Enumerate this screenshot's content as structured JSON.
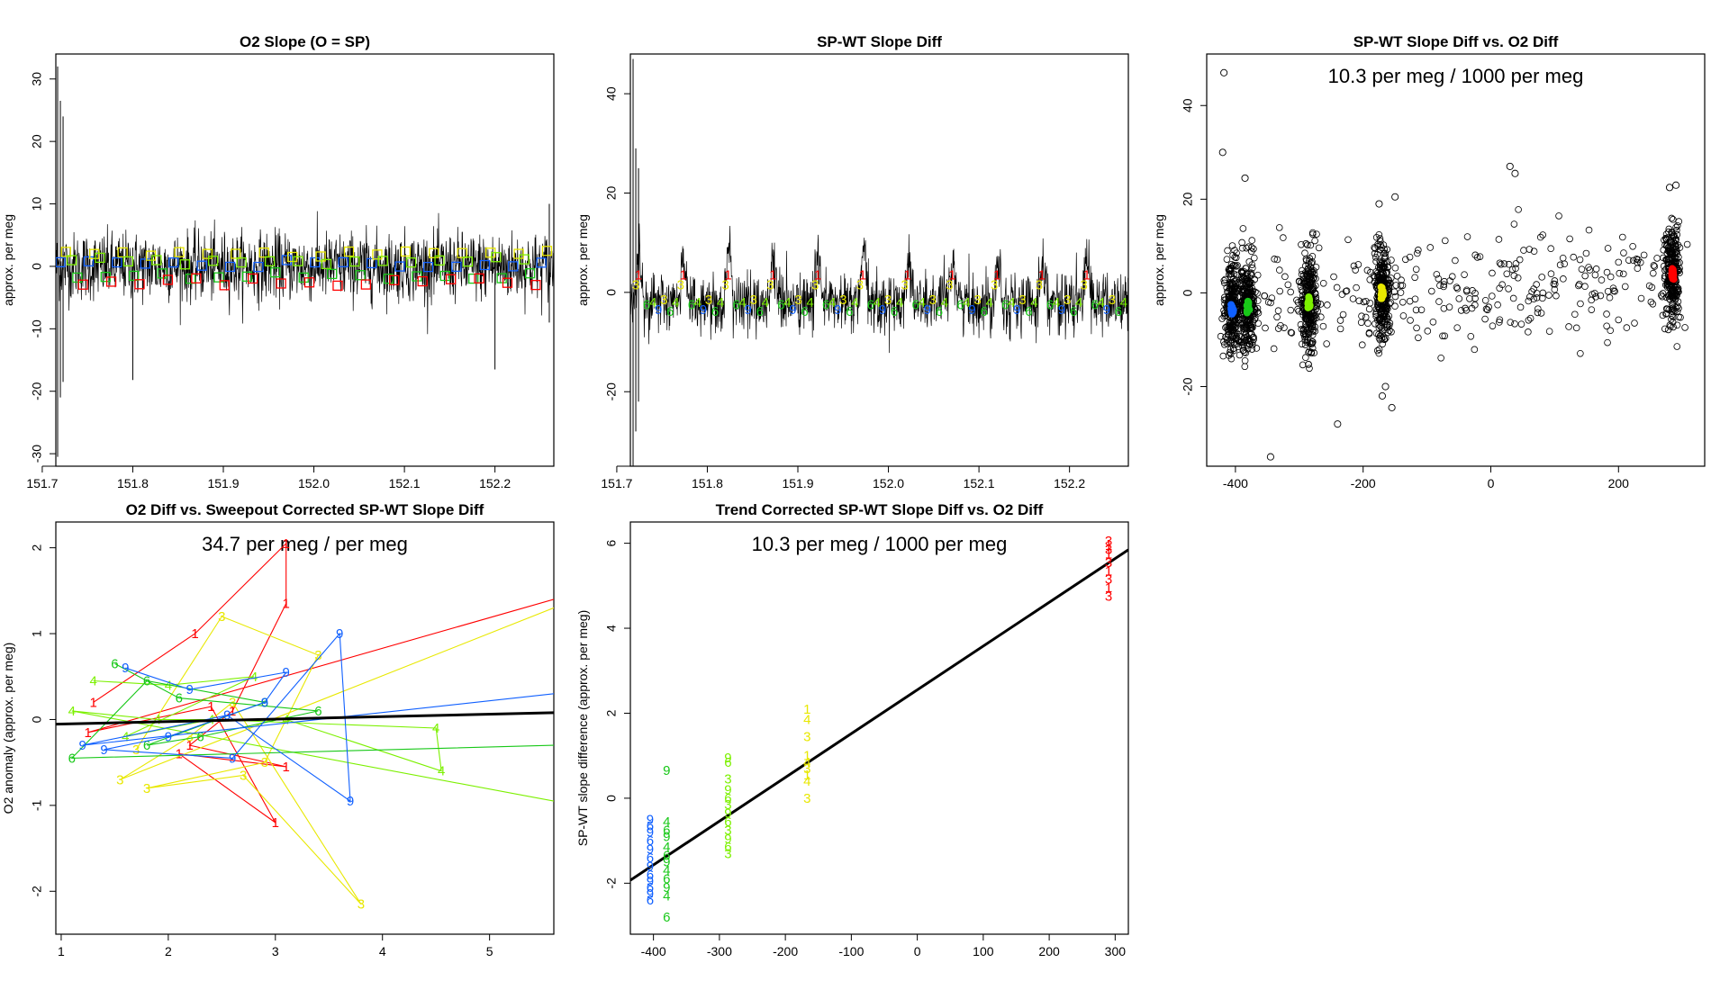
{
  "colors": {
    "t1": "#ff0000",
    "t3": "#e8e800",
    "t4": "#7cf000",
    "t6": "#18c818",
    "t9": "#1060ff",
    "black": "#000000"
  },
  "chart_data": [
    {
      "id": "p1",
      "type": "line",
      "title": "O2 Slope (O = SP)",
      "xlabel": "",
      "ylabel": "approx. per meg",
      "xlim": [
        151.715,
        152.265
      ],
      "ylim": [
        -32,
        34
      ],
      "xticks": [
        "151.7",
        "151.8",
        "151.9",
        "152.0",
        "152.1",
        "152.2"
      ],
      "yticks": [
        "-30",
        "-20",
        "-10",
        "0",
        "10",
        "20",
        "30"
      ],
      "xtick_values": [
        151.7,
        151.8,
        151.9,
        152.0,
        152.1,
        152.2
      ],
      "ytick_values": [
        -30,
        -20,
        -10,
        0,
        10,
        20,
        30
      ],
      "noise": {
        "center": 0,
        "sd": 2.7,
        "spikes": [
          [
            151.717,
            32,
            -30.5
          ],
          [
            151.72,
            26.5,
            -21
          ],
          [
            151.723,
            24,
            -18.5
          ],
          [
            151.8,
            3,
            -18.2
          ],
          [
            152.2,
            3,
            -16.5
          ],
          [
            152.26,
            10,
            -9
          ]
        ]
      },
      "markers": {
        "symbol": "□",
        "period": 0.0125,
        "cycle": [
          "t9",
          "t3",
          "t4",
          "t6",
          "t1"
        ],
        "values": [
          0.5,
          2.1,
          0.9,
          -1.5,
          -2.5
        ]
      }
    },
    {
      "id": "p2",
      "type": "line",
      "title": "SP-WT Slope Diff",
      "xlabel": "",
      "ylabel": "approx. per meg",
      "xlim": [
        151.715,
        152.265
      ],
      "ylim": [
        -35,
        48
      ],
      "xticks": [
        "151.7",
        "151.8",
        "151.9",
        "152.0",
        "152.1",
        "152.2"
      ],
      "yticks": [
        "-20",
        "0",
        "20",
        "40"
      ],
      "xtick_values": [
        151.7,
        151.8,
        151.9,
        152.0,
        152.1,
        152.2
      ],
      "ytick_values": [
        -20,
        0,
        20,
        40
      ],
      "noise": {
        "center": -1,
        "sd": 3.0,
        "spikes": [
          [
            151.718,
            47,
            -35
          ],
          [
            151.721,
            29,
            -28
          ],
          [
            151.724,
            25,
            -22
          ]
        ]
      },
      "label_cycle": {
        "period": 0.0495,
        "labels": [
          "1",
          "3",
          "6",
          "4",
          "9",
          "3",
          "6",
          "4"
        ]
      }
    },
    {
      "id": "p3",
      "type": "scatter",
      "title": "SP-WT Slope Diff vs. O2 Diff",
      "annotation": "10.3 per meg / 1000 per meg",
      "xlabel": "",
      "ylabel": "approx. per meg",
      "xlim": [
        -445,
        335
      ],
      "ylim": [
        -37,
        51
      ],
      "xticks": [
        "-400",
        "-200",
        "0",
        "200"
      ],
      "yticks": [
        "-20",
        "0",
        "20",
        "40"
      ],
      "xtick_values": [
        -400,
        -200,
        0,
        200
      ],
      "ytick_values": [
        -20,
        0,
        20,
        40
      ],
      "clusters": [
        {
          "x": -405,
          "y": -3.5,
          "color": "t9"
        },
        {
          "x": -380,
          "y": -3.0,
          "color": "t6"
        },
        {
          "x": -285,
          "y": -2.0,
          "color": "t4"
        },
        {
          "x": -170,
          "y": 0.0,
          "color": "t3"
        },
        {
          "x": 285,
          "y": 4.0,
          "color": "t1"
        }
      ],
      "outliers": [
        [
          -418,
          47
        ],
        [
          -420,
          30
        ],
        [
          -385,
          24.5
        ],
        [
          -345,
          -35
        ],
        [
          -240,
          -28
        ],
        [
          30,
          27
        ],
        [
          38,
          25.5
        ],
        [
          -150,
          20.5
        ],
        [
          -175,
          19
        ],
        [
          -170,
          -22
        ],
        [
          -165,
          -20
        ],
        [
          -155,
          -24.5
        ],
        [
          280,
          22.5
        ],
        [
          290,
          23
        ]
      ]
    },
    {
      "id": "p4",
      "type": "line",
      "title": "O2 Diff vs. Sweepout Corrected SP-WT Slope Diff",
      "annotation": "34.7 per meg / per meg",
      "xlabel": "",
      "ylabel": "O2 anomaly (approx. per meg)",
      "xlim": [
        0.95,
        5.6
      ],
      "ylim": [
        -2.5,
        2.3
      ],
      "xticks": [
        "1",
        "2",
        "3",
        "4",
        "5"
      ],
      "yticks": [
        "-2",
        "-1",
        "0",
        "1",
        "2"
      ],
      "xtick_values": [
        1,
        2,
        3,
        4,
        5
      ],
      "ytick_values": [
        -2,
        -1,
        0,
        1,
        2
      ],
      "fit": {
        "slope": 0.0288,
        "intercept": -0.082
      },
      "series": [
        {
          "color": "t1",
          "label": "1",
          "points": [
            [
              1.3,
              0.2
            ],
            [
              2.25,
              1.0
            ],
            [
              3.1,
              2.05
            ],
            [
              3.1,
              1.35
            ],
            [
              2.6,
              0.1
            ],
            [
              2.2,
              -0.3
            ],
            [
              3.1,
              -0.55
            ],
            [
              2.1,
              -0.4
            ],
            [
              3.0,
              -1.2
            ],
            [
              2.4,
              0.15
            ],
            [
              1.25,
              -0.15
            ],
            [
              5.6,
              1.4
            ]
          ]
        },
        {
          "color": "t3",
          "label": "3",
          "points": [
            [
              1.7,
              -0.35
            ],
            [
              2.5,
              1.2
            ],
            [
              3.4,
              0.75
            ],
            [
              2.9,
              -0.5
            ],
            [
              1.8,
              -0.8
            ],
            [
              2.7,
              -0.65
            ],
            [
              3.8,
              -2.15
            ],
            [
              2.6,
              0.2
            ],
            [
              2.2,
              -0.2
            ],
            [
              1.55,
              -0.7
            ],
            [
              5.6,
              1.3
            ]
          ]
        },
        {
          "color": "t4",
          "label": "4",
          "points": [
            [
              1.3,
              0.45
            ],
            [
              2.0,
              0.4
            ],
            [
              2.8,
              0.5
            ],
            [
              1.6,
              -0.2
            ],
            [
              2.4,
              0.0
            ],
            [
              4.5,
              -0.1
            ],
            [
              4.55,
              -0.6
            ],
            [
              3.1,
              0.0
            ],
            [
              1.9,
              0.0
            ],
            [
              1.1,
              0.1
            ],
            [
              5.6,
              -0.95
            ]
          ]
        },
        {
          "color": "t6",
          "label": "6",
          "points": [
            [
              1.5,
              0.65
            ],
            [
              2.1,
              0.25
            ],
            [
              3.4,
              0.1
            ],
            [
              2.3,
              -0.2
            ],
            [
              1.8,
              -0.3
            ],
            [
              2.9,
              0.2
            ],
            [
              1.8,
              0.45
            ],
            [
              1.1,
              -0.45
            ],
            [
              5.6,
              -0.3
            ]
          ]
        },
        {
          "color": "t9",
          "label": "9",
          "points": [
            [
              1.6,
              0.6
            ],
            [
              2.2,
              0.35
            ],
            [
              3.1,
              0.55
            ],
            [
              2.9,
              0.2
            ],
            [
              2.0,
              -0.2
            ],
            [
              1.4,
              -0.35
            ],
            [
              2.6,
              -0.45
            ],
            [
              3.6,
              1.0
            ],
            [
              3.7,
              -0.95
            ],
            [
              2.55,
              0.05
            ],
            [
              1.2,
              -0.3
            ],
            [
              5.6,
              0.3
            ]
          ]
        }
      ]
    },
    {
      "id": "p5",
      "type": "scatter",
      "title": "Trend Corrected SP-WT Slope Diff vs. O2 Diff",
      "annotation": "10.3 per meg / 1000 per meg",
      "xlabel": "",
      "ylabel": "SP-WT slope difference (approx. per meg)",
      "xlim": [
        -435,
        320
      ],
      "ylim": [
        -3.2,
        6.5
      ],
      "xticks": [
        "-400",
        "-300",
        "-200",
        "-100",
        "0",
        "100",
        "200",
        "300"
      ],
      "yticks": [
        "-2",
        "0",
        "2",
        "4",
        "6"
      ],
      "xtick_values": [
        -400,
        -300,
        -200,
        -100,
        0,
        100,
        200,
        300
      ],
      "ytick_values": [
        -2,
        0,
        2,
        4,
        6
      ],
      "fit": {
        "slope": 0.0103,
        "intercept": 2.55
      },
      "groups": [
        {
          "x": -405,
          "color": "t9",
          "labels": [
            "9",
            "6"
          ],
          "values": [
            -0.5,
            -0.65,
            -0.8,
            -1.0,
            -1.2,
            -1.4,
            -1.6,
            -1.8,
            -1.95,
            -2.1,
            -2.25,
            -2.4
          ]
        },
        {
          "x": -380,
          "color": "t6",
          "labels": [
            "9",
            "4",
            "6"
          ],
          "values": [
            0.65,
            -0.55,
            -0.75,
            -0.9,
            -1.15,
            -1.35,
            -1.5,
            -1.7,
            -1.9,
            -2.1,
            -2.3,
            -2.8
          ]
        },
        {
          "x": -287,
          "color": "t4",
          "labels": [
            "9",
            "6",
            "3"
          ],
          "values": [
            0.95,
            0.85,
            0.45,
            0.2,
            0.0,
            -0.15,
            -0.35,
            -0.55,
            -0.75,
            -0.95,
            -1.15,
            -1.3
          ]
        },
        {
          "x": -167,
          "color": "t3",
          "labels": [
            "1",
            "4",
            "3"
          ],
          "values": [
            2.1,
            1.85,
            1.45,
            1.0,
            0.85,
            0.7,
            0.55,
            0.4,
            0.0
          ]
        },
        {
          "x": 290,
          "color": "t1",
          "labels": [
            "3",
            "1"
          ],
          "values": [
            6.05,
            5.95,
            5.85,
            5.75,
            5.55,
            5.35,
            5.15,
            4.95,
            4.75
          ]
        }
      ]
    }
  ]
}
